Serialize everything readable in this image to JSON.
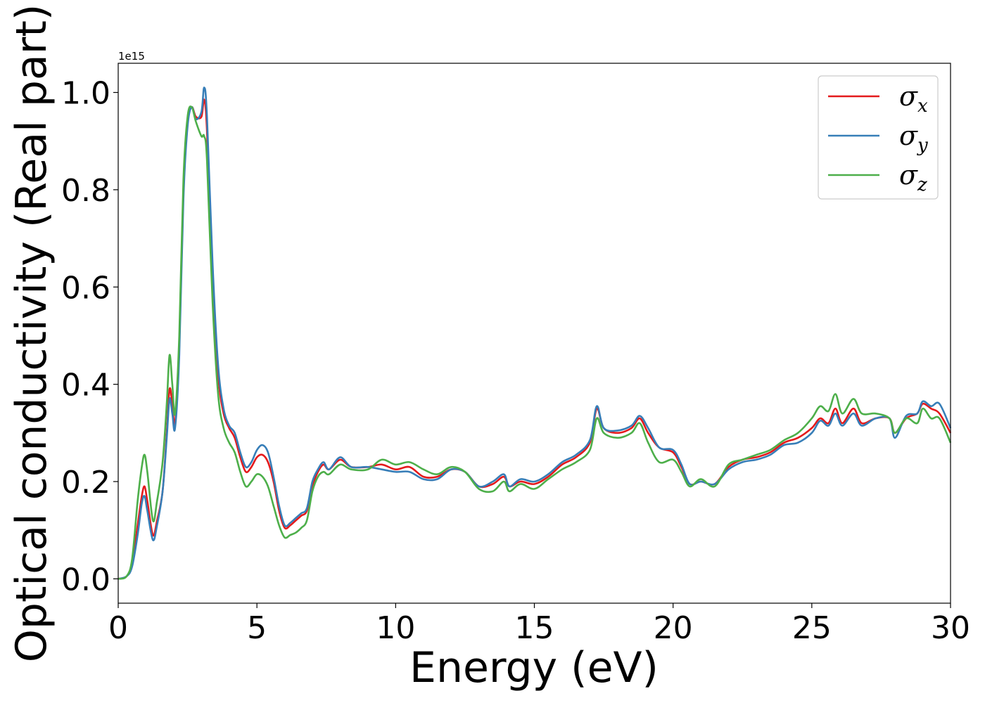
{
  "chart_data": {
    "type": "line",
    "xlabel": "Energy (eV)",
    "ylabel": "Optical conductivity (Real part)",
    "y_offset_label": "1e15",
    "xlim": [
      0,
      30
    ],
    "ylim": [
      -0.05,
      1.06
    ],
    "xticks": [
      0,
      5,
      10,
      15,
      20,
      25,
      30
    ],
    "xtick_labels": [
      "0",
      "5",
      "10",
      "15",
      "20",
      "25",
      "30"
    ],
    "yticks": [
      0.0,
      0.2,
      0.4,
      0.6,
      0.8,
      1.0
    ],
    "ytick_labels": [
      "0.0",
      "0.2",
      "0.4",
      "0.6",
      "0.8",
      "1.0"
    ],
    "grid": false,
    "legend_position": "top-right",
    "series": [
      {
        "name": "σx",
        "symbol": "σ",
        "subscript": "x",
        "color": "#e41a1c",
        "points": [
          [
            0,
            0
          ],
          [
            0.3,
            0.005
          ],
          [
            0.5,
            0.03
          ],
          [
            0.7,
            0.11
          ],
          [
            0.85,
            0.17
          ],
          [
            0.95,
            0.19
          ],
          [
            1.05,
            0.16
          ],
          [
            1.25,
            0.09
          ],
          [
            1.4,
            0.12
          ],
          [
            1.6,
            0.18
          ],
          [
            1.75,
            0.3
          ],
          [
            1.85,
            0.39
          ],
          [
            1.95,
            0.36
          ],
          [
            2.05,
            0.32
          ],
          [
            2.2,
            0.48
          ],
          [
            2.35,
            0.8
          ],
          [
            2.5,
            0.94
          ],
          [
            2.65,
            0.97
          ],
          [
            2.8,
            0.95
          ],
          [
            3.0,
            0.95
          ],
          [
            3.1,
            0.985
          ],
          [
            3.2,
            0.92
          ],
          [
            3.4,
            0.62
          ],
          [
            3.6,
            0.42
          ],
          [
            3.8,
            0.34
          ],
          [
            4.0,
            0.31
          ],
          [
            4.2,
            0.29
          ],
          [
            4.4,
            0.25
          ],
          [
            4.6,
            0.22
          ],
          [
            4.8,
            0.23
          ],
          [
            5.0,
            0.25
          ],
          [
            5.2,
            0.255
          ],
          [
            5.4,
            0.24
          ],
          [
            5.6,
            0.2
          ],
          [
            5.8,
            0.14
          ],
          [
            6.0,
            0.105
          ],
          [
            6.2,
            0.11
          ],
          [
            6.4,
            0.12
          ],
          [
            6.6,
            0.13
          ],
          [
            6.8,
            0.14
          ],
          [
            7.0,
            0.19
          ],
          [
            7.2,
            0.22
          ],
          [
            7.4,
            0.235
          ],
          [
            7.6,
            0.225
          ],
          [
            8.0,
            0.245
          ],
          [
            8.4,
            0.23
          ],
          [
            9.0,
            0.23
          ],
          [
            9.5,
            0.235
          ],
          [
            10.0,
            0.225
          ],
          [
            10.5,
            0.23
          ],
          [
            11.0,
            0.21
          ],
          [
            11.5,
            0.21
          ],
          [
            12.0,
            0.225
          ],
          [
            12.5,
            0.22
          ],
          [
            13.0,
            0.19
          ],
          [
            13.5,
            0.195
          ],
          [
            13.9,
            0.21
          ],
          [
            14.1,
            0.19
          ],
          [
            14.5,
            0.2
          ],
          [
            15.0,
            0.195
          ],
          [
            15.5,
            0.21
          ],
          [
            16.0,
            0.235
          ],
          [
            16.5,
            0.25
          ],
          [
            17.0,
            0.28
          ],
          [
            17.25,
            0.35
          ],
          [
            17.5,
            0.31
          ],
          [
            18.0,
            0.3
          ],
          [
            18.5,
            0.31
          ],
          [
            18.8,
            0.33
          ],
          [
            19.1,
            0.3
          ],
          [
            19.5,
            0.27
          ],
          [
            20.0,
            0.26
          ],
          [
            20.3,
            0.23
          ],
          [
            20.6,
            0.195
          ],
          [
            21.0,
            0.2
          ],
          [
            21.5,
            0.195
          ],
          [
            22.0,
            0.23
          ],
          [
            22.5,
            0.245
          ],
          [
            23.0,
            0.25
          ],
          [
            23.5,
            0.26
          ],
          [
            24.0,
            0.28
          ],
          [
            24.5,
            0.29
          ],
          [
            25.0,
            0.31
          ],
          [
            25.3,
            0.33
          ],
          [
            25.6,
            0.32
          ],
          [
            25.85,
            0.35
          ],
          [
            26.1,
            0.32
          ],
          [
            26.5,
            0.35
          ],
          [
            26.8,
            0.32
          ],
          [
            27.3,
            0.33
          ],
          [
            27.8,
            0.33
          ],
          [
            28.0,
            0.3
          ],
          [
            28.4,
            0.33
          ],
          [
            28.8,
            0.34
          ],
          [
            29.0,
            0.36
          ],
          [
            29.3,
            0.35
          ],
          [
            29.6,
            0.34
          ],
          [
            30.0,
            0.3
          ]
        ]
      },
      {
        "name": "σy",
        "symbol": "σ",
        "subscript": "y",
        "color": "#377eb8",
        "points": [
          [
            0,
            0
          ],
          [
            0.3,
            0.005
          ],
          [
            0.5,
            0.025
          ],
          [
            0.7,
            0.09
          ],
          [
            0.85,
            0.155
          ],
          [
            0.95,
            0.17
          ],
          [
            1.05,
            0.14
          ],
          [
            1.25,
            0.08
          ],
          [
            1.4,
            0.11
          ],
          [
            1.6,
            0.18
          ],
          [
            1.75,
            0.29
          ],
          [
            1.85,
            0.37
          ],
          [
            1.95,
            0.34
          ],
          [
            2.05,
            0.31
          ],
          [
            2.2,
            0.46
          ],
          [
            2.35,
            0.78
          ],
          [
            2.5,
            0.93
          ],
          [
            2.65,
            0.97
          ],
          [
            2.8,
            0.945
          ],
          [
            3.0,
            0.96
          ],
          [
            3.1,
            1.01
          ],
          [
            3.2,
            0.95
          ],
          [
            3.4,
            0.65
          ],
          [
            3.6,
            0.44
          ],
          [
            3.8,
            0.35
          ],
          [
            4.0,
            0.315
          ],
          [
            4.2,
            0.3
          ],
          [
            4.4,
            0.26
          ],
          [
            4.6,
            0.23
          ],
          [
            4.8,
            0.24
          ],
          [
            5.0,
            0.265
          ],
          [
            5.2,
            0.275
          ],
          [
            5.4,
            0.26
          ],
          [
            5.6,
            0.21
          ],
          [
            5.8,
            0.15
          ],
          [
            6.0,
            0.11
          ],
          [
            6.2,
            0.115
          ],
          [
            6.4,
            0.125
          ],
          [
            6.6,
            0.135
          ],
          [
            6.8,
            0.145
          ],
          [
            7.0,
            0.2
          ],
          [
            7.2,
            0.225
          ],
          [
            7.4,
            0.24
          ],
          [
            7.6,
            0.225
          ],
          [
            8.0,
            0.25
          ],
          [
            8.4,
            0.23
          ],
          [
            9.0,
            0.23
          ],
          [
            9.5,
            0.225
          ],
          [
            10.0,
            0.22
          ],
          [
            10.5,
            0.22
          ],
          [
            11.0,
            0.205
          ],
          [
            11.5,
            0.205
          ],
          [
            12.0,
            0.225
          ],
          [
            12.5,
            0.22
          ],
          [
            13.0,
            0.19
          ],
          [
            13.5,
            0.2
          ],
          [
            13.9,
            0.215
          ],
          [
            14.1,
            0.19
          ],
          [
            14.5,
            0.205
          ],
          [
            15.0,
            0.2
          ],
          [
            15.5,
            0.215
          ],
          [
            16.0,
            0.24
          ],
          [
            16.5,
            0.255
          ],
          [
            17.0,
            0.285
          ],
          [
            17.25,
            0.355
          ],
          [
            17.5,
            0.31
          ],
          [
            18.0,
            0.305
          ],
          [
            18.5,
            0.315
          ],
          [
            18.8,
            0.335
          ],
          [
            19.1,
            0.31
          ],
          [
            19.5,
            0.27
          ],
          [
            20.0,
            0.265
          ],
          [
            20.3,
            0.235
          ],
          [
            20.6,
            0.195
          ],
          [
            21.0,
            0.2
          ],
          [
            21.5,
            0.195
          ],
          [
            22.0,
            0.225
          ],
          [
            22.5,
            0.24
          ],
          [
            23.0,
            0.245
          ],
          [
            23.5,
            0.255
          ],
          [
            24.0,
            0.275
          ],
          [
            24.5,
            0.28
          ],
          [
            25.0,
            0.3
          ],
          [
            25.3,
            0.325
          ],
          [
            25.6,
            0.315
          ],
          [
            25.85,
            0.34
          ],
          [
            26.1,
            0.315
          ],
          [
            26.5,
            0.34
          ],
          [
            26.8,
            0.315
          ],
          [
            27.3,
            0.33
          ],
          [
            27.8,
            0.33
          ],
          [
            28.0,
            0.29
          ],
          [
            28.4,
            0.335
          ],
          [
            28.8,
            0.34
          ],
          [
            29.0,
            0.365
          ],
          [
            29.3,
            0.355
          ],
          [
            29.6,
            0.36
          ],
          [
            30.0,
            0.31
          ]
        ]
      },
      {
        "name": "σz",
        "symbol": "σ",
        "subscript": "z",
        "color": "#4daf4a",
        "points": [
          [
            0,
            0
          ],
          [
            0.3,
            0.005
          ],
          [
            0.5,
            0.04
          ],
          [
            0.7,
            0.16
          ],
          [
            0.85,
            0.23
          ],
          [
            0.95,
            0.255
          ],
          [
            1.05,
            0.22
          ],
          [
            1.25,
            0.12
          ],
          [
            1.4,
            0.16
          ],
          [
            1.6,
            0.24
          ],
          [
            1.75,
            0.36
          ],
          [
            1.85,
            0.46
          ],
          [
            1.95,
            0.4
          ],
          [
            2.05,
            0.34
          ],
          [
            2.2,
            0.5
          ],
          [
            2.35,
            0.82
          ],
          [
            2.5,
            0.95
          ],
          [
            2.65,
            0.97
          ],
          [
            2.8,
            0.94
          ],
          [
            3.0,
            0.91
          ],
          [
            3.1,
            0.91
          ],
          [
            3.2,
            0.86
          ],
          [
            3.4,
            0.57
          ],
          [
            3.6,
            0.38
          ],
          [
            3.8,
            0.31
          ],
          [
            4.0,
            0.28
          ],
          [
            4.2,
            0.26
          ],
          [
            4.4,
            0.22
          ],
          [
            4.6,
            0.19
          ],
          [
            4.8,
            0.2
          ],
          [
            5.0,
            0.215
          ],
          [
            5.2,
            0.21
          ],
          [
            5.4,
            0.19
          ],
          [
            5.6,
            0.15
          ],
          [
            5.8,
            0.11
          ],
          [
            6.0,
            0.085
          ],
          [
            6.2,
            0.09
          ],
          [
            6.4,
            0.095
          ],
          [
            6.6,
            0.105
          ],
          [
            6.8,
            0.12
          ],
          [
            7.0,
            0.18
          ],
          [
            7.2,
            0.21
          ],
          [
            7.4,
            0.22
          ],
          [
            7.6,
            0.215
          ],
          [
            8.0,
            0.235
          ],
          [
            8.4,
            0.225
          ],
          [
            9.0,
            0.225
          ],
          [
            9.5,
            0.245
          ],
          [
            10.0,
            0.235
          ],
          [
            10.5,
            0.24
          ],
          [
            11.0,
            0.225
          ],
          [
            11.5,
            0.215
          ],
          [
            12.0,
            0.23
          ],
          [
            12.5,
            0.22
          ],
          [
            13.0,
            0.185
          ],
          [
            13.5,
            0.18
          ],
          [
            13.9,
            0.2
          ],
          [
            14.1,
            0.18
          ],
          [
            14.5,
            0.195
          ],
          [
            15.0,
            0.185
          ],
          [
            15.5,
            0.205
          ],
          [
            16.0,
            0.225
          ],
          [
            16.5,
            0.24
          ],
          [
            17.0,
            0.265
          ],
          [
            17.25,
            0.33
          ],
          [
            17.5,
            0.3
          ],
          [
            18.0,
            0.29
          ],
          [
            18.5,
            0.3
          ],
          [
            18.8,
            0.32
          ],
          [
            19.1,
            0.28
          ],
          [
            19.5,
            0.24
          ],
          [
            20.0,
            0.245
          ],
          [
            20.3,
            0.22
          ],
          [
            20.6,
            0.19
          ],
          [
            21.0,
            0.205
          ],
          [
            21.5,
            0.19
          ],
          [
            22.0,
            0.235
          ],
          [
            22.5,
            0.245
          ],
          [
            23.0,
            0.255
          ],
          [
            23.5,
            0.265
          ],
          [
            24.0,
            0.285
          ],
          [
            24.5,
            0.3
          ],
          [
            25.0,
            0.33
          ],
          [
            25.3,
            0.355
          ],
          [
            25.6,
            0.345
          ],
          [
            25.85,
            0.38
          ],
          [
            26.1,
            0.34
          ],
          [
            26.5,
            0.37
          ],
          [
            26.8,
            0.34
          ],
          [
            27.3,
            0.34
          ],
          [
            27.8,
            0.33
          ],
          [
            28.0,
            0.3
          ],
          [
            28.4,
            0.33
          ],
          [
            28.8,
            0.32
          ],
          [
            29.0,
            0.35
          ],
          [
            29.3,
            0.33
          ],
          [
            29.6,
            0.33
          ],
          [
            30.0,
            0.28
          ]
        ]
      }
    ]
  }
}
